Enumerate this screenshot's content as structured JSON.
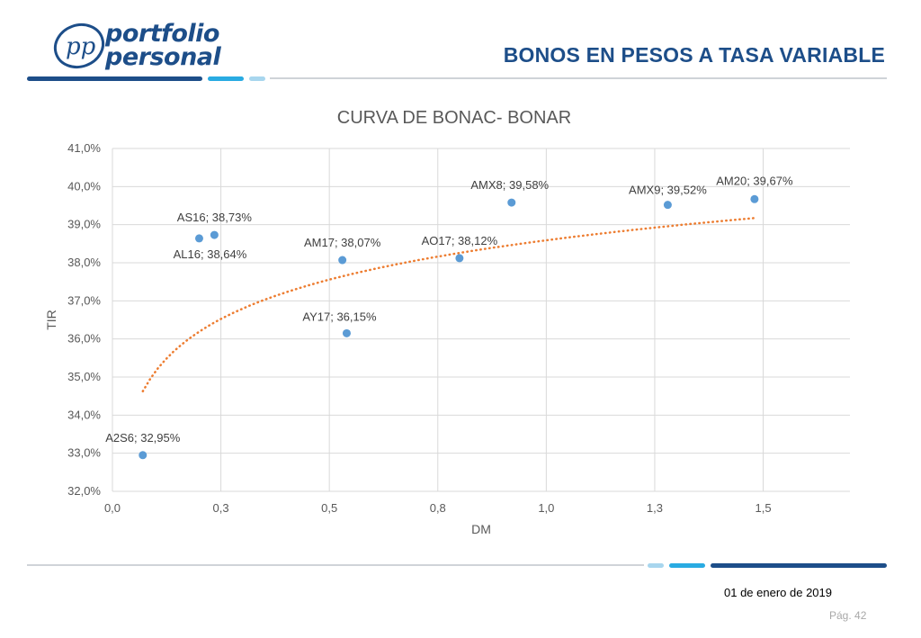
{
  "brand": {
    "line1": "portfolio",
    "line2": "personal",
    "monogram": "pp"
  },
  "header": {
    "title": "BONOS EN PESOS A TASA VARIABLE"
  },
  "footer": {
    "date": "01 de enero de 2019",
    "page": "Pág. 42"
  },
  "colors": {
    "primary": "#1d4e89",
    "accent": "#29abe2",
    "light_accent": "#a8d6ee",
    "point": "#5b9bd5",
    "trend": "#ed7d31"
  },
  "chart_data": {
    "type": "scatter",
    "title": "CURVA DE BONAC- BONAR",
    "xlabel": "DM",
    "ylabel": "TIR",
    "xlim": [
      0,
      1.7
    ],
    "ylim": [
      32,
      41
    ],
    "xticks": [
      0,
      0.25,
      0.5,
      0.75,
      1.0,
      1.25,
      1.5
    ],
    "xtick_labels": [
      "0,0",
      "0,3",
      "0,5",
      "0,8",
      "1,0",
      "1,3",
      "1,5"
    ],
    "yticks": [
      32,
      33,
      34,
      35,
      36,
      37,
      38,
      39,
      40,
      41
    ],
    "ytick_labels": [
      "32,0%",
      "33,0%",
      "34,0%",
      "35,0%",
      "36,0%",
      "37,0%",
      "38,0%",
      "39,0%",
      "40,0%",
      "41,0%"
    ],
    "grid": true,
    "points": [
      {
        "label": "A2S6; 32,95%",
        "x": 0.07,
        "y": 32.95
      },
      {
        "label": "AL16; 38,64%",
        "x": 0.2,
        "y": 38.64
      },
      {
        "label": "AS16; 38,73%",
        "x": 0.235,
        "y": 38.73
      },
      {
        "label": "AM17; 38,07%",
        "x": 0.53,
        "y": 38.07
      },
      {
        "label": "AY17; 36,15%",
        "x": 0.54,
        "y": 36.15
      },
      {
        "label": "AO17; 38,12%",
        "x": 0.8,
        "y": 38.12
      },
      {
        "label": "AMX8; 39,58%",
        "x": 0.92,
        "y": 39.58
      },
      {
        "label": "AMX9; 39,52%",
        "x": 1.28,
        "y": 39.52
      },
      {
        "label": "AM20; 39,67%",
        "x": 1.48,
        "y": 39.67
      }
    ],
    "trendline": {
      "type": "logarithmic",
      "style": "dotted",
      "x_range": [
        0.07,
        1.48
      ],
      "a": 38.59,
      "b": 1.49
    }
  }
}
